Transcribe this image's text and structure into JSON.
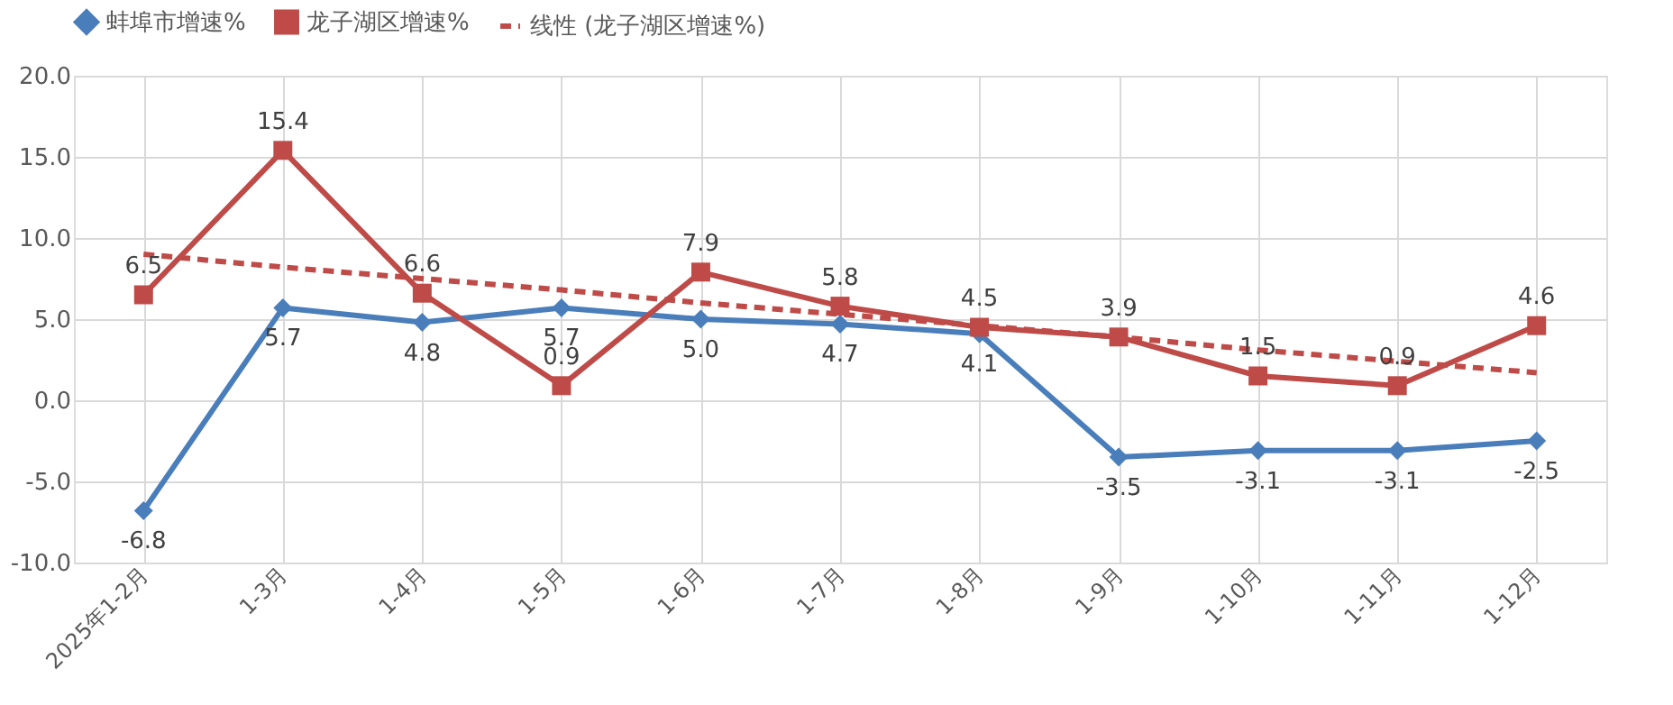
{
  "chart_data": {
    "type": "line",
    "categories": [
      "2025年1-2月",
      "1-3月",
      "1-4月",
      "1-5月",
      "1-6月",
      "1-7月",
      "1-8月",
      "1-9月",
      "1-10月",
      "1-11月",
      "1-12月"
    ],
    "series": [
      {
        "name": "蚌埠市增速%",
        "color": "#4a7ebb",
        "marker": "diamond",
        "values": [
          -6.8,
          5.7,
          4.8,
          5.7,
          5.0,
          4.7,
          4.1,
          -3.5,
          -3.1,
          -3.1,
          -2.5
        ],
        "value_labels": [
          "-6.8",
          "5.7",
          "4.8",
          "5.7",
          "5.0",
          "4.7",
          "4.1",
          "-3.5",
          "-3.1",
          "-3.1",
          "-2.5"
        ]
      },
      {
        "name": "龙子湖区增速%",
        "color": "#be4b48",
        "marker": "square",
        "values": [
          6.5,
          15.4,
          6.6,
          0.9,
          7.9,
          5.8,
          4.5,
          3.9,
          1.5,
          0.9,
          4.6
        ],
        "value_labels": [
          "6.5",
          "15.4",
          "6.6",
          "0.9",
          "7.9",
          "5.8",
          "4.5",
          "3.9",
          "1.5",
          "0.9",
          "4.6"
        ]
      },
      {
        "name": "线性 (龙子湖区增速%)",
        "color": "#be4b48",
        "marker": "none",
        "line_style": "dashed",
        "values": [
          9.0,
          8.2,
          7.5,
          6.8,
          6.0,
          5.3,
          4.6,
          3.9,
          3.1,
          2.4,
          1.7
        ]
      }
    ],
    "ylim": [
      -10,
      20
    ],
    "yticks": [
      {
        "value": -10,
        "label": "-10.0"
      },
      {
        "value": -5,
        "label": "-5.0"
      },
      {
        "value": 0,
        "label": "0.0"
      },
      {
        "value": 5,
        "label": "5.0"
      },
      {
        "value": 10,
        "label": "10.0"
      },
      {
        "value": 15,
        "label": "15.0"
      },
      {
        "value": 20,
        "label": "20.0"
      }
    ],
    "grid": true,
    "legend": "top"
  }
}
